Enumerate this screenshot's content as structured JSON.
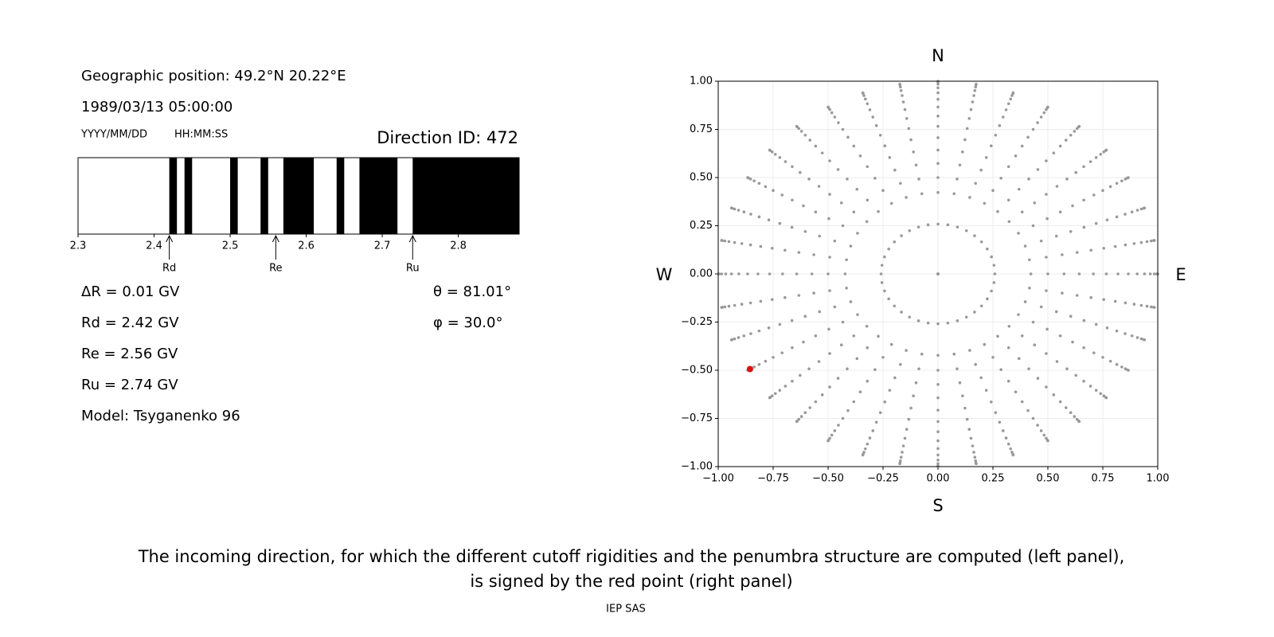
{
  "left_panel": {
    "position": "Geographic position: 49.2°N 20.22°E",
    "datetime": "1989/03/13 05:00:00",
    "date_format": "YYYY/MM/DD",
    "time_format": "HH:MM:SS",
    "direction_id": "Direction ID: 472",
    "info": [
      "ΔR = 0.01 GV",
      "Rd = 2.42 GV",
      "Re = 2.56 GV",
      "Ru = 2.74 GV",
      "Model: Tsyganenko 96"
    ],
    "angles": [
      "θ = 81.01°",
      "φ = 30.0°"
    ]
  },
  "chart_data": [
    {
      "type": "penumbra",
      "xlim": [
        2.3,
        2.88
      ],
      "xticks": [
        2.3,
        2.4,
        2.5,
        2.6,
        2.7,
        2.8
      ],
      "color": "#000000",
      "forbidden": [
        [
          2.42,
          2.43
        ],
        [
          2.44,
          2.45
        ],
        [
          2.5,
          2.51
        ],
        [
          2.54,
          2.55
        ],
        [
          2.57,
          2.61
        ],
        [
          2.64,
          2.65
        ],
        [
          2.67,
          2.72
        ],
        [
          2.74,
          2.88
        ]
      ],
      "markers": {
        "names": [
          "Rd",
          "Re",
          "Ru"
        ],
        "values": [
          2.42,
          2.56,
          2.74
        ]
      }
    },
    {
      "type": "directions",
      "xlim": [
        -1,
        1
      ],
      "ylim": [
        -1,
        1
      ],
      "xticks": [
        {
          "value": -1,
          "label": "−1.00"
        },
        {
          "value": -0.75,
          "label": "−0.75"
        },
        {
          "value": -0.5,
          "label": "−0.50"
        },
        {
          "value": -0.25,
          "label": "−0.25"
        },
        {
          "value": 0,
          "label": "0.00"
        },
        {
          "value": 0.25,
          "label": "0.25"
        },
        {
          "value": 0.5,
          "label": "0.50"
        },
        {
          "value": 0.75,
          "label": "0.75"
        },
        {
          "value": 1,
          "label": "1.00"
        }
      ],
      "yticks": [
        {
          "value": -1,
          "label": "−1.00"
        },
        {
          "value": -0.75,
          "label": "−0.75"
        },
        {
          "value": -0.5,
          "label": "−0.50"
        },
        {
          "value": -0.25,
          "label": "−0.25"
        },
        {
          "value": 0,
          "label": "0.00"
        },
        {
          "value": 0.25,
          "label": "0.25"
        },
        {
          "value": 0.5,
          "label": "0.50"
        },
        {
          "value": 0.75,
          "label": "0.75"
        },
        {
          "value": 1,
          "label": "1.00"
        }
      ],
      "grid": true,
      "compass": {
        "north": "N",
        "south": "S",
        "west": "W",
        "east": "E"
      },
      "grid_directions": {
        "color": "#999999",
        "zenith": [
          0,
          15,
          25,
          30,
          35,
          40,
          45,
          50,
          55,
          60,
          65,
          70,
          75,
          80,
          85,
          90
        ],
        "azimuth": [
          0,
          10,
          20,
          30,
          40,
          50,
          60,
          70,
          80,
          90,
          100,
          110,
          120,
          130,
          140,
          150,
          160,
          170,
          180,
          190,
          200,
          210,
          220,
          230,
          240,
          250,
          260,
          270,
          280,
          290,
          300,
          310,
          320,
          330,
          340,
          350
        ]
      },
      "selected": {
        "color": "#e01010",
        "zenith": 81.01,
        "azimuth": 30
      }
    }
  ],
  "caption": [
    "The incoming direction, for which the different cutoff rigidities and the penumbra structure are computed (left panel),",
    "is signed by the red point (right panel)"
  ],
  "footer": "IEP SAS"
}
